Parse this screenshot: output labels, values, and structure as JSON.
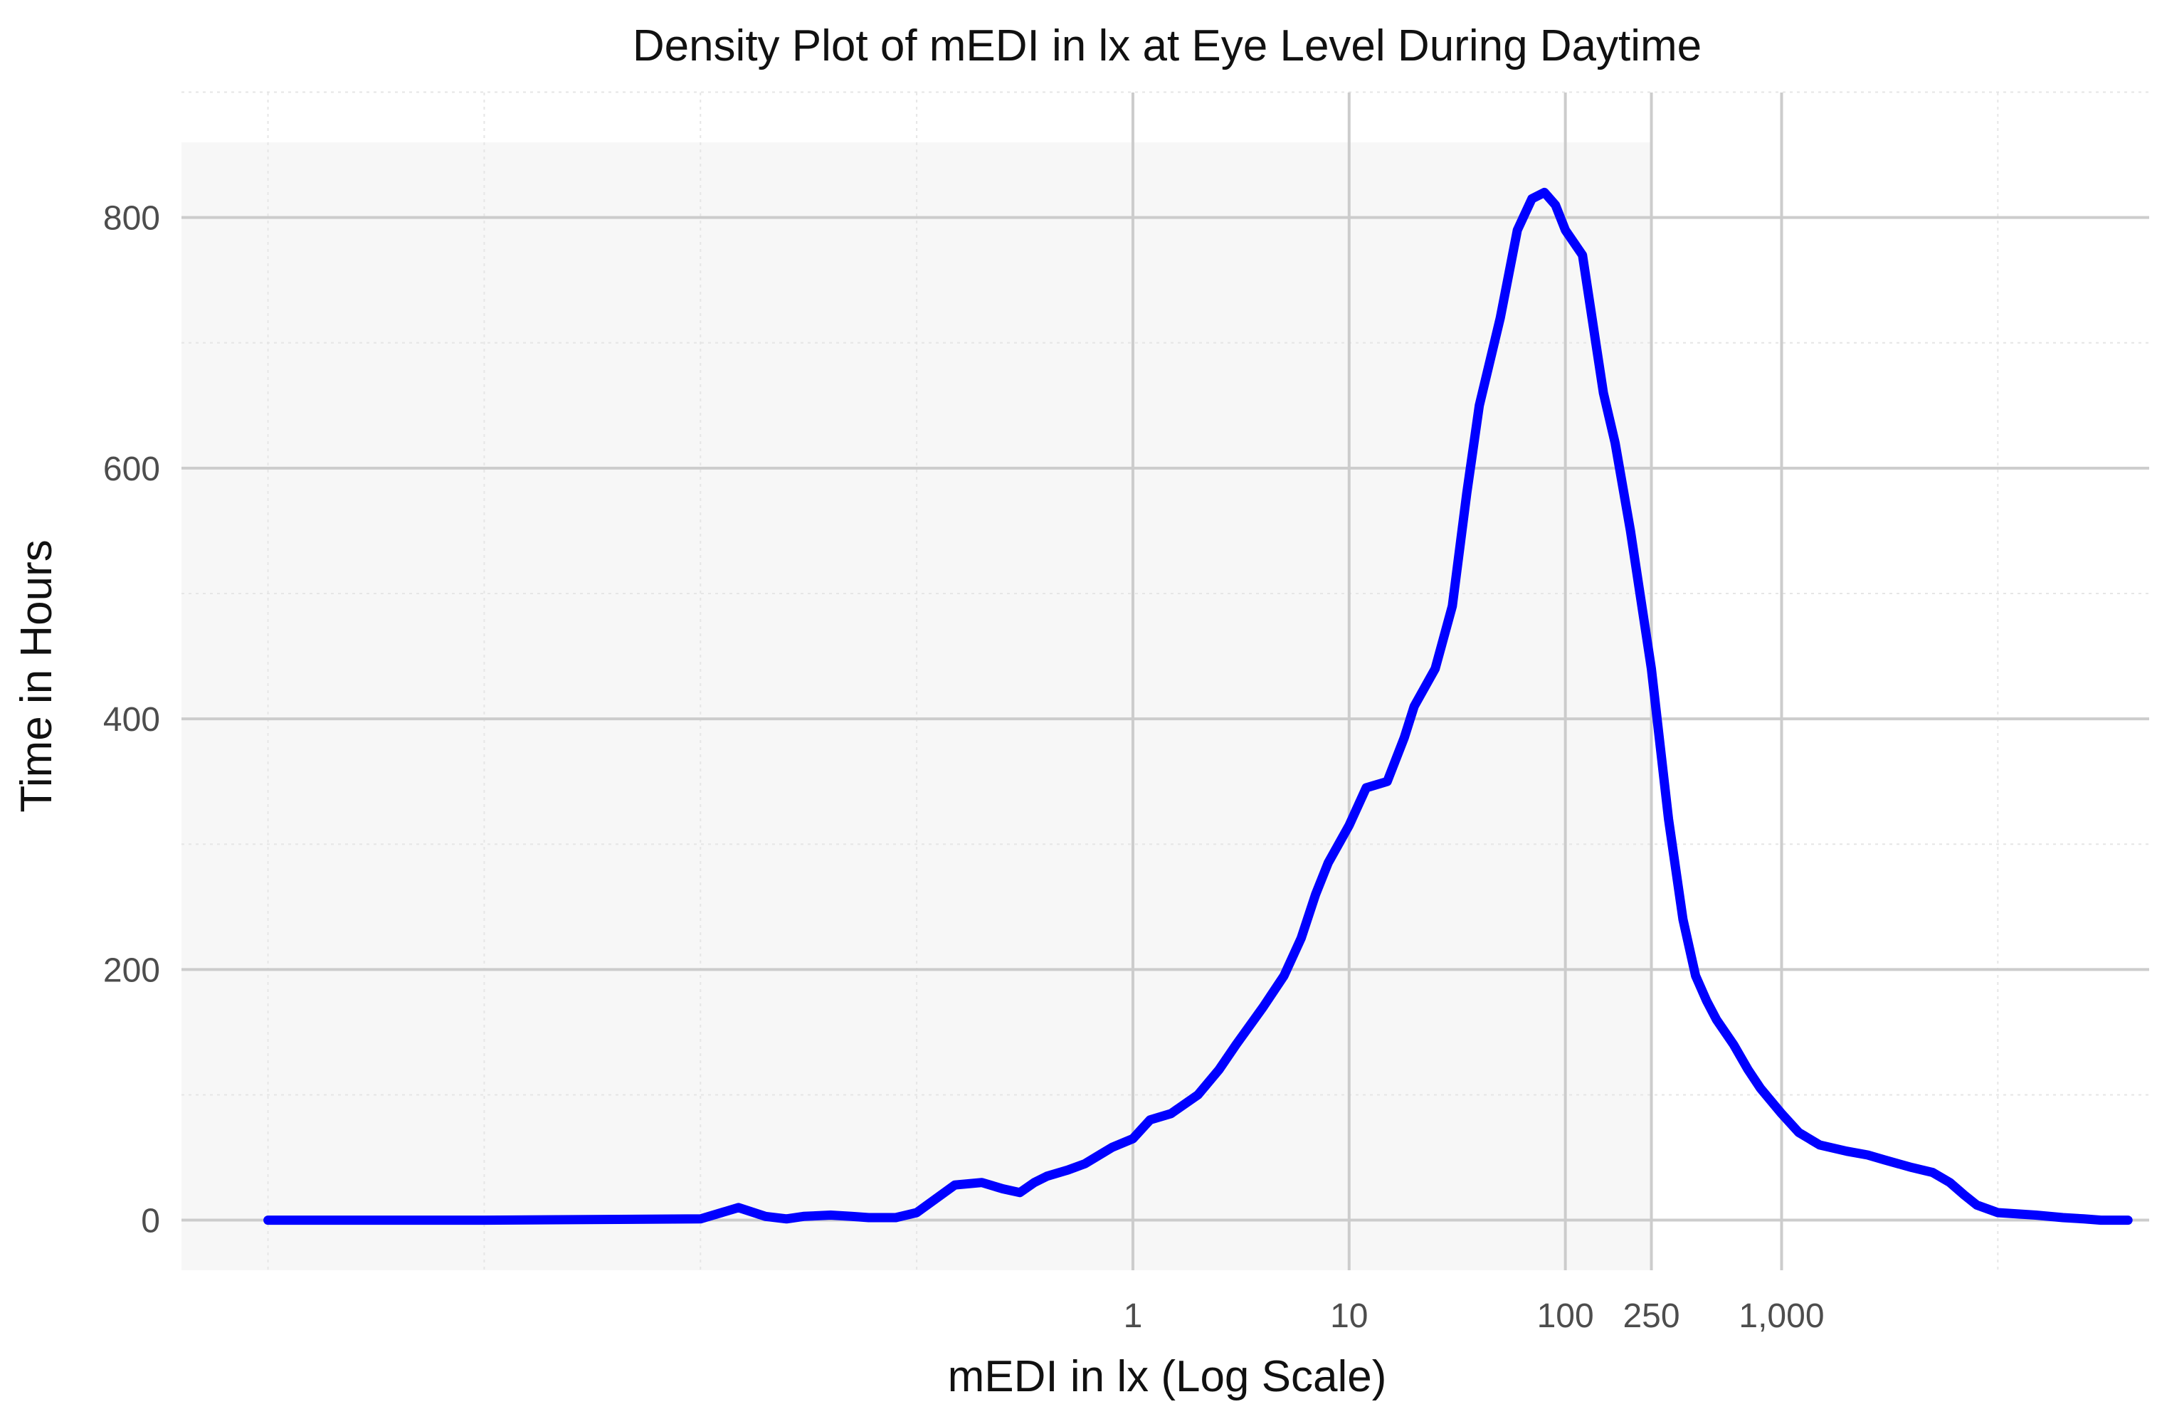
{
  "chart_data": {
    "type": "line",
    "title": "Density Plot of mEDI in lx at Eye Level During Daytime",
    "xlabel": "mEDI in lx (Log Scale)",
    "ylabel": "Time in Hours",
    "x_scale": "log10",
    "xlim": [
      3.98e-05,
      50119
    ],
    "ylim": [
      -40,
      860
    ],
    "x_ticks": [
      {
        "value": 1,
        "label": "1"
      },
      {
        "value": 10,
        "label": "10"
      },
      {
        "value": 100,
        "label": "100"
      },
      {
        "value": 250,
        "label": "250"
      },
      {
        "value": 1000,
        "label": "1,000"
      }
    ],
    "y_ticks": [
      {
        "value": 0,
        "label": "0"
      },
      {
        "value": 200,
        "label": "200"
      },
      {
        "value": 400,
        "label": "400"
      },
      {
        "value": 600,
        "label": "600"
      },
      {
        "value": 800,
        "label": "800"
      }
    ],
    "shaded_region": {
      "x_from": 3.98e-05,
      "x_to": 250,
      "color": "#f7f7f7"
    },
    "grid": true,
    "line_color": "#0000ff",
    "series": [
      {
        "x": [
          0.0001,
          0.001,
          0.01,
          0.015,
          0.02,
          0.025,
          0.03,
          0.04,
          0.05,
          0.06,
          0.08,
          0.1,
          0.15,
          0.2,
          0.25,
          0.3,
          0.35,
          0.4,
          0.5,
          0.6,
          0.7,
          0.8,
          1,
          1.2,
          1.5,
          2,
          2.5,
          3,
          4,
          5,
          6,
          7,
          8,
          10,
          12,
          15,
          18,
          20,
          25,
          30,
          35,
          40,
          50,
          60,
          70,
          80,
          90,
          100,
          120,
          150,
          170,
          200,
          250,
          300,
          350,
          400,
          450,
          500,
          600,
          700,
          800,
          1000,
          1200,
          1500,
          2000,
          2500,
          3000,
          4000,
          5000,
          6000,
          7000,
          8000,
          10000,
          15000,
          20000,
          25000,
          30000,
          40000
        ],
        "y": [
          0,
          0,
          1,
          10,
          3,
          1,
          3,
          4,
          3,
          2,
          2,
          6,
          28,
          30,
          25,
          22,
          30,
          35,
          40,
          45,
          52,
          58,
          65,
          80,
          85,
          100,
          120,
          140,
          170,
          195,
          225,
          260,
          285,
          315,
          345,
          350,
          385,
          410,
          440,
          490,
          580,
          650,
          720,
          790,
          815,
          820,
          810,
          790,
          770,
          660,
          620,
          550,
          440,
          320,
          240,
          195,
          175,
          160,
          140,
          120,
          105,
          85,
          70,
          60,
          55,
          52,
          48,
          42,
          38,
          30,
          20,
          12,
          6,
          4,
          2,
          1,
          0,
          0
        ]
      }
    ]
  }
}
